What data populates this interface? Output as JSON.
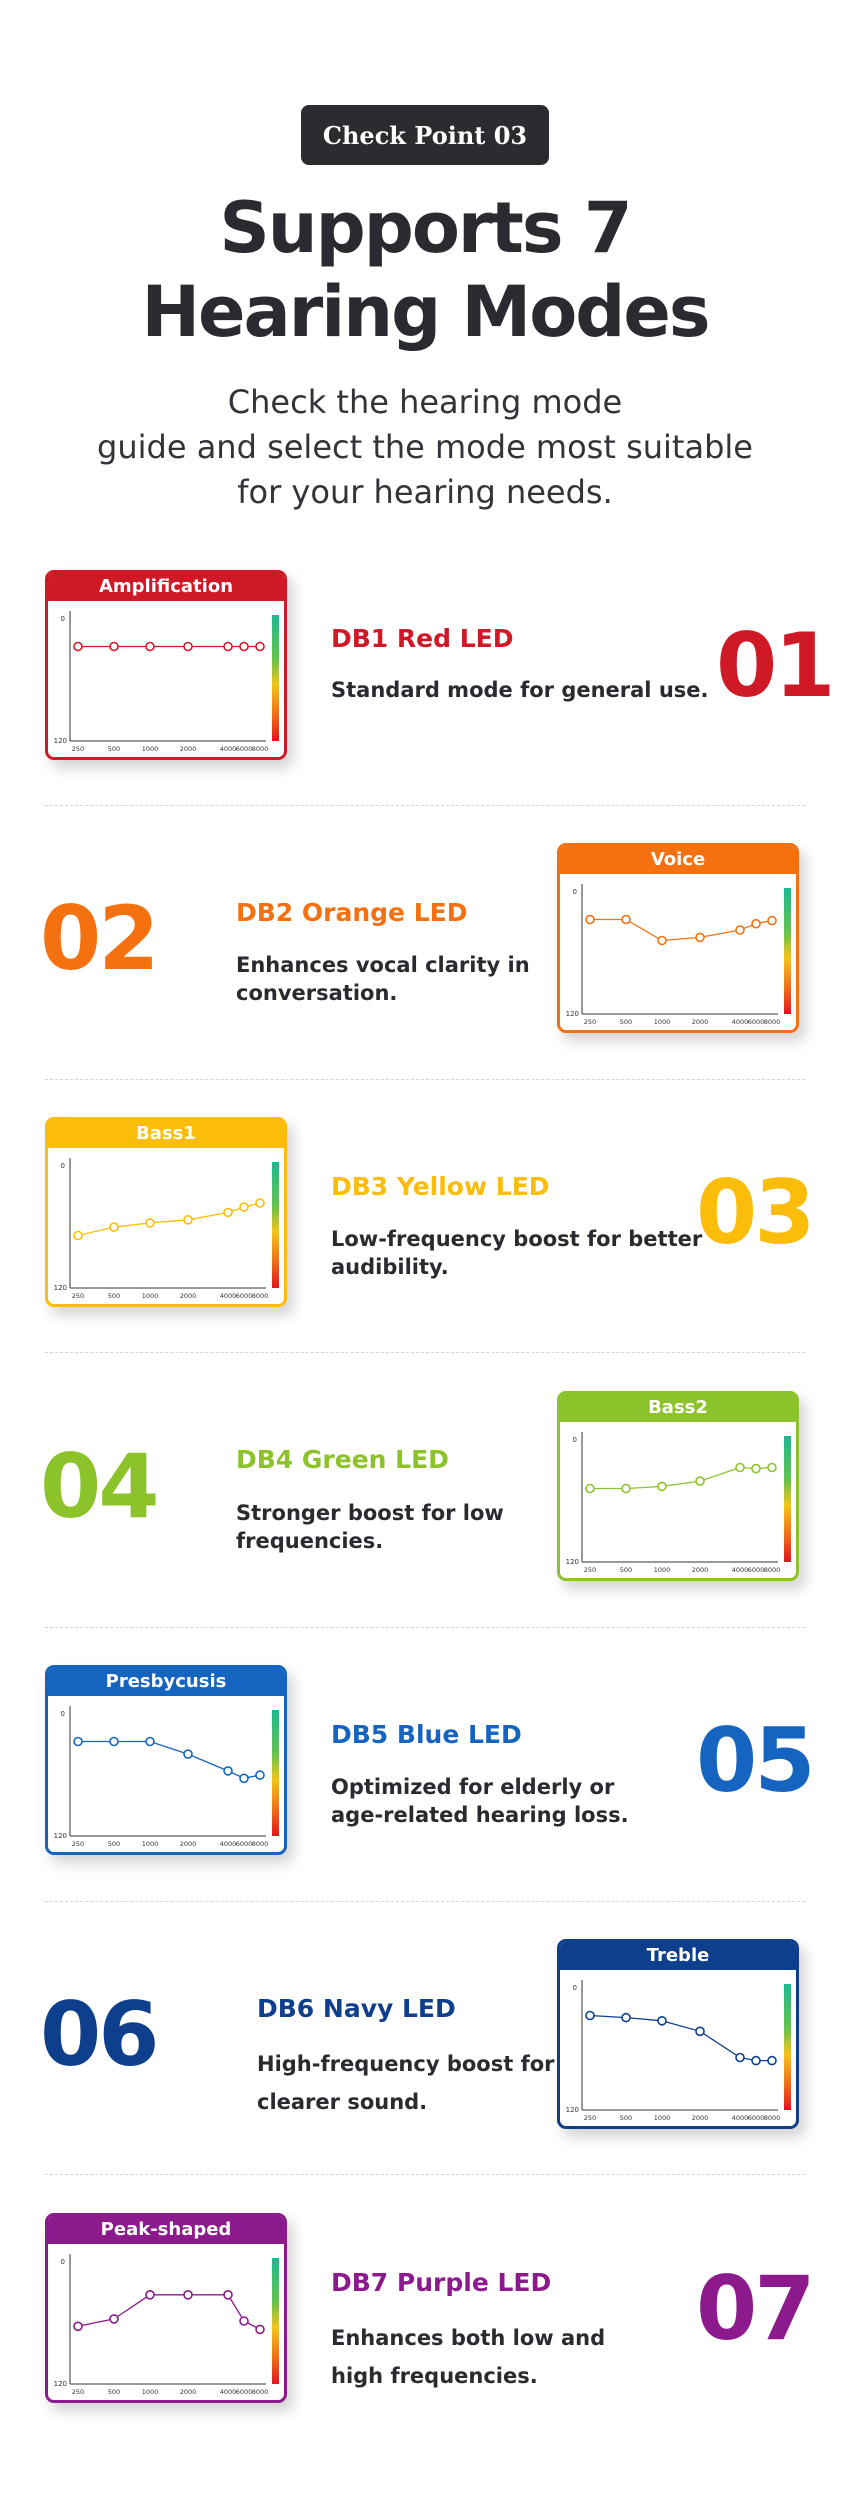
{
  "header": {
    "badge": "Check Point 03",
    "title_line1": "Supports 7",
    "title_line2": "Hearing Modes",
    "intro_line1": "Check the hearing mode",
    "intro_line2": "guide and select the mode most suitable",
    "intro_line3": "for your hearing needs."
  },
  "chart_axis": {
    "y_top": "0",
    "y_bottom": "120",
    "x_ticks": [
      "250",
      "500",
      "1000",
      "2000",
      "4000",
      "6000",
      "8000"
    ]
  },
  "modes": [
    {
      "number": "01",
      "led": "DB1 Red LED",
      "chart_title": "Amplification",
      "desc_line1": "Standard mode for general use.",
      "desc_line2": "",
      "color": "#d01927"
    },
    {
      "number": "02",
      "led": "DB2 Orange LED",
      "chart_title": "Voice",
      "desc_line1": "Enhances vocal clarity in",
      "desc_line2": "conversation.",
      "color": "#f5700f"
    },
    {
      "number": "03",
      "led": "DB3 Yellow LED",
      "chart_title": "Bass1",
      "desc_line1": "Low-frequency boost for better",
      "desc_line2": "audibility.",
      "color": "#fbbd0a"
    },
    {
      "number": "04",
      "led": "DB4 Green LED",
      "chart_title": "Bass2",
      "desc_line1": "Stronger boost for low",
      "desc_line2": "frequencies.",
      "color": "#8cc22a"
    },
    {
      "number": "05",
      "led": "DB5 Blue LED",
      "chart_title": "Presbycusis",
      "desc_line1": "Optimized for elderly or",
      "desc_line2": "age-related hearing loss.",
      "color": "#1565c0"
    },
    {
      "number": "06",
      "led": "DB6 Navy LED",
      "chart_title": "Treble",
      "desc_line1": "High-frequency boost for",
      "desc_line2": "clearer sound.",
      "color": "#0d3f8c"
    },
    {
      "number": "07",
      "led": "DB7 Purple LED",
      "chart_title": "Peak-shaped",
      "desc_line1": "Enhances both low and",
      "desc_line2": "high frequencies.",
      "color": "#8c1a8c"
    }
  ],
  "chart_data": [
    {
      "type": "line",
      "title": "Amplification",
      "x": [
        250,
        500,
        1000,
        2000,
        4000,
        6000,
        8000
      ],
      "values": [
        30,
        30,
        30,
        30,
        30,
        30,
        30
      ],
      "ylim": [
        0,
        120
      ]
    },
    {
      "type": "line",
      "title": "Voice",
      "x": [
        250,
        500,
        1000,
        2000,
        4000,
        6000,
        8000
      ],
      "values": [
        30,
        30,
        50,
        47,
        40,
        34,
        31
      ],
      "ylim": [
        0,
        120
      ]
    },
    {
      "type": "line",
      "title": "Bass1",
      "x": [
        250,
        500,
        1000,
        2000,
        4000,
        6000,
        8000
      ],
      "values": [
        70,
        62,
        58,
        55,
        48,
        43,
        39
      ],
      "ylim": [
        0,
        120
      ]
    },
    {
      "type": "line",
      "title": "Bass2",
      "x": [
        250,
        500,
        1000,
        2000,
        4000,
        6000,
        8000
      ],
      "values": [
        50,
        50,
        48,
        43,
        30,
        31,
        30
      ],
      "ylim": [
        0,
        120
      ]
    },
    {
      "type": "line",
      "title": "Presbycusis",
      "x": [
        250,
        500,
        1000,
        2000,
        4000,
        6000,
        8000
      ],
      "values": [
        30,
        30,
        30,
        42,
        58,
        65,
        62
      ],
      "ylim": [
        0,
        120
      ]
    },
    {
      "type": "line",
      "title": "Treble",
      "x": [
        250,
        500,
        1000,
        2000,
        4000,
        6000,
        8000
      ],
      "values": [
        30,
        32,
        35,
        45,
        70,
        73,
        73
      ],
      "ylim": [
        0,
        120
      ]
    },
    {
      "type": "line",
      "title": "Peak-shaped",
      "x": [
        250,
        500,
        1000,
        2000,
        4000,
        6000,
        8000
      ],
      "values": [
        65,
        58,
        35,
        35,
        35,
        60,
        68
      ],
      "ylim": [
        0,
        120
      ]
    }
  ]
}
